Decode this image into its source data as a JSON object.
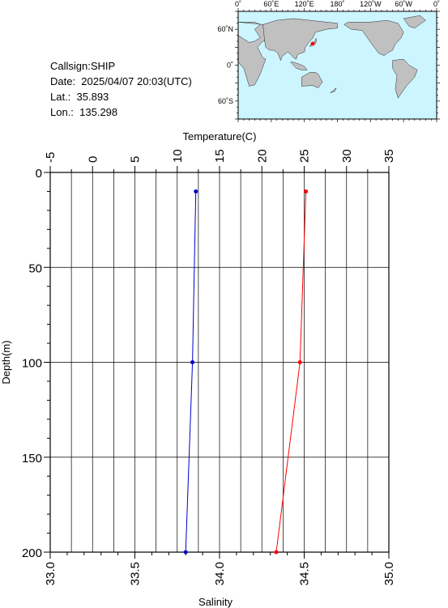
{
  "info": {
    "callsign": "Callsign:SHIP",
    "date": "Date:  2025/04/07 20:03(UTC)",
    "lat": "Lat.:  35.893",
    "lon": "Lon.:  135.298"
  },
  "map": {
    "top_labels": [
      "0˚",
      "60˚E",
      "120˚E",
      "180˚",
      "120˚W",
      "60˚W",
      "0˚"
    ],
    "left_labels": [
      "60˚N",
      "0˚",
      "60˚S"
    ],
    "colors": {
      "ocean": "#ccf5ff",
      "land": "#c0c0c0",
      "marker": "#ff0000"
    },
    "marker": {
      "lat": 35.893,
      "lon": 135.298
    }
  },
  "chart_data": {
    "type": "line",
    "top_axis": {
      "label": "Temperature(C)",
      "range": [
        -5,
        35
      ],
      "ticks": [
        -5,
        0,
        5,
        10,
        15,
        20,
        25,
        30,
        35
      ],
      "tick_labels": [
        "-5",
        "0",
        "5",
        "10",
        "15",
        "20",
        "25",
        "30",
        "35"
      ]
    },
    "bottom_axis": {
      "label": "Salinity",
      "range": [
        33.0,
        35.0
      ],
      "ticks": [
        33.0,
        33.5,
        34.0,
        34.5,
        35.0
      ],
      "tick_labels": [
        "33.0",
        "33.5",
        "34.0",
        "34.5",
        "35.0"
      ]
    },
    "y_axis": {
      "label": "Depth(m)",
      "range": [
        0,
        200
      ],
      "inverted": true,
      "ticks": [
        0,
        50,
        100,
        150,
        200
      ],
      "tick_labels": [
        "0",
        "50",
        "100",
        "150",
        "200"
      ]
    },
    "grid": true,
    "series": [
      {
        "axis": "bottom",
        "color": "#0000cc",
        "points": [
          {
            "x": 33.86,
            "depth": 10
          },
          {
            "x": 33.84,
            "depth": 100
          },
          {
            "x": 33.8,
            "depth": 200
          }
        ]
      },
      {
        "axis": "top",
        "color": "#ff0000",
        "points": [
          {
            "x": 25.2,
            "depth": 10
          },
          {
            "x": 24.5,
            "depth": 100
          },
          {
            "x": 21.7,
            "depth": 200
          }
        ]
      }
    ]
  }
}
